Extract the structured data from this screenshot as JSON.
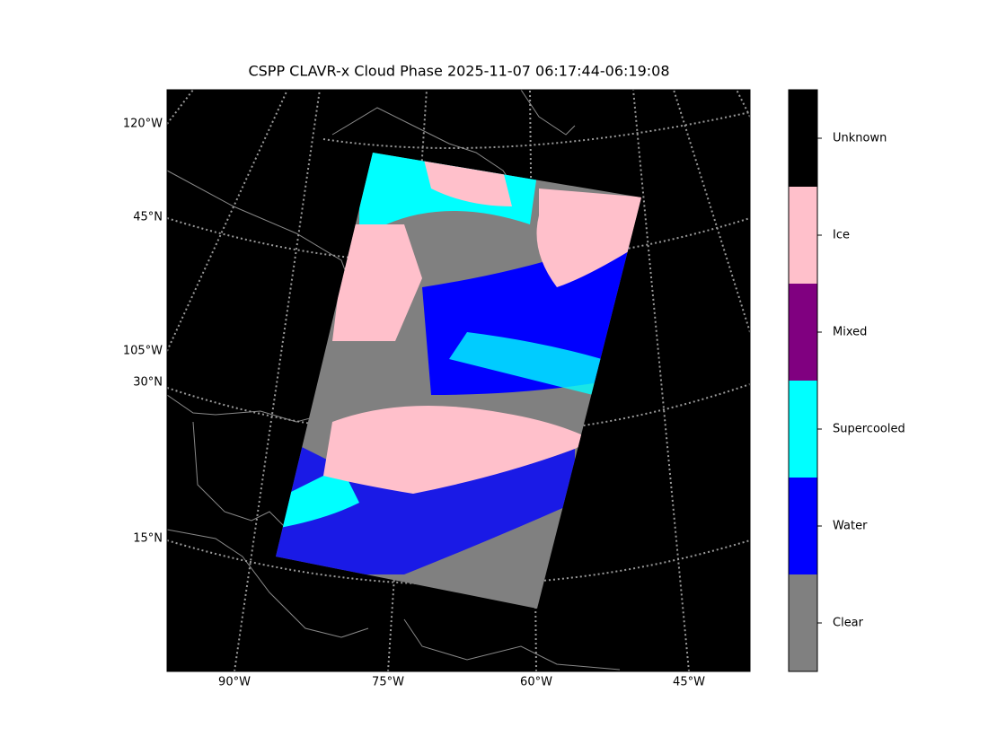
{
  "title": "CSPP CLAVR-x Cloud Phase 2025-11-07 06:17:44-06:19:08",
  "map": {
    "lon_labels": [
      "90°W",
      "75°W",
      "60°W",
      "45°W"
    ],
    "left_labels": [
      "120°W",
      "45°N",
      "105°W",
      "30°N",
      "15°N"
    ]
  },
  "colorbar": {
    "categories": [
      {
        "label": "Clear",
        "color": "#808080"
      },
      {
        "label": "Water",
        "color": "#0000ff"
      },
      {
        "label": "Supercooled",
        "color": "#00ffff"
      },
      {
        "label": "Mixed",
        "color": "#800080"
      },
      {
        "label": "Ice",
        "color": "#ffc0cb"
      },
      {
        "label": "Unknown",
        "color": "#000000"
      }
    ]
  }
}
